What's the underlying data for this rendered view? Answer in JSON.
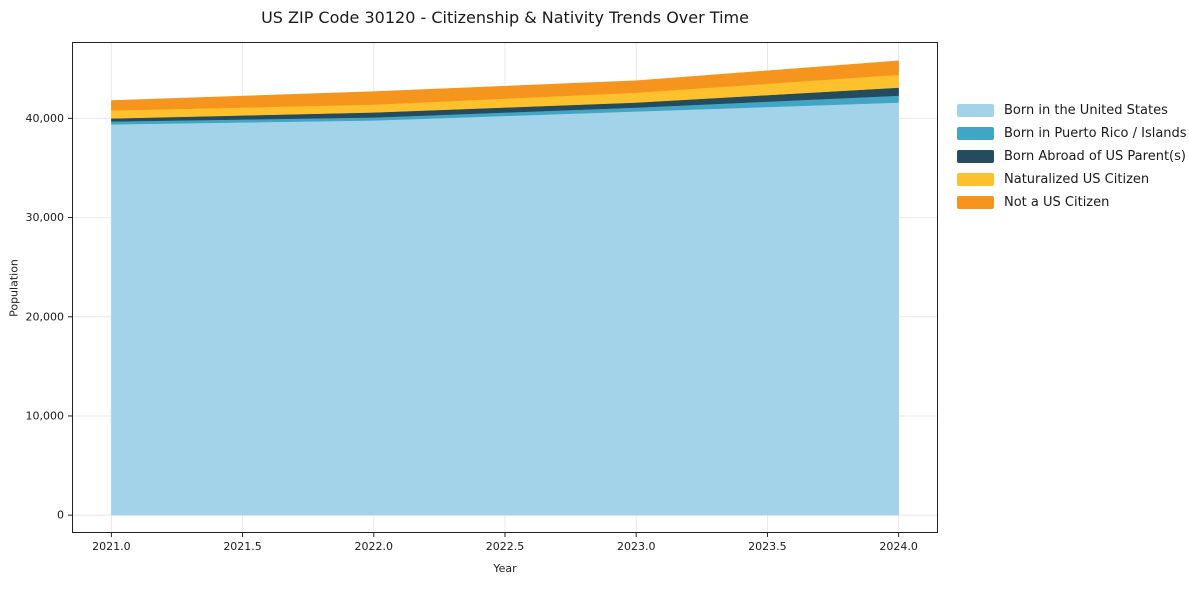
{
  "title": "US ZIP Code 30120 - Citizenship & Nativity Trends Over Time",
  "chart_data": {
    "type": "area",
    "stacked": true,
    "title": "US ZIP Code 30120 - Citizenship & Nativity Trends Over Time",
    "xlabel": "Year",
    "ylabel": "Population",
    "x": [
      2021,
      2022,
      2023,
      2024
    ],
    "series": [
      {
        "name": "Born in the United States",
        "color": "#A3D3E8",
        "values": [
          39400,
          39800,
          40700,
          41600
        ]
      },
      {
        "name": "Born in Puerto Rico / Islands",
        "color": "#42A5C5",
        "values": [
          300,
          300,
          400,
          700
        ]
      },
      {
        "name": "Born Abroad of US Parent(s)",
        "color": "#254B5E",
        "values": [
          300,
          500,
          500,
          800
        ]
      },
      {
        "name": "Naturalized US Citizen",
        "color": "#FCC12C",
        "values": [
          800,
          800,
          1000,
          1300
        ]
      },
      {
        "name": "Not a US Citizen",
        "color": "#F6951E",
        "values": [
          1000,
          1300,
          1200,
          1400
        ]
      }
    ],
    "stack_totals": [
      41800,
      42700,
      43800,
      45800
    ],
    "xlim": [
      2020.85,
      2024.15
    ],
    "ylim": [
      -1800,
      47700
    ],
    "x_ticks": {
      "values": [
        2021.0,
        2021.5,
        2022.0,
        2022.5,
        2023.0,
        2023.5,
        2024.0
      ],
      "labels": [
        "2021.0",
        "2021.5",
        "2022.0",
        "2022.5",
        "2023.0",
        "2023.5",
        "2024.0"
      ]
    },
    "y_ticks": {
      "values": [
        0,
        10000,
        20000,
        30000,
        40000
      ],
      "labels": [
        "0",
        "10,000",
        "20,000",
        "30,000",
        "40,000"
      ]
    },
    "grid": true,
    "legend_position": "outside-right"
  },
  "style": {
    "grid_color": "#e8e8e8",
    "spine_color": "#222222",
    "text_color": "#1a1a1a",
    "background": "#ffffff"
  }
}
